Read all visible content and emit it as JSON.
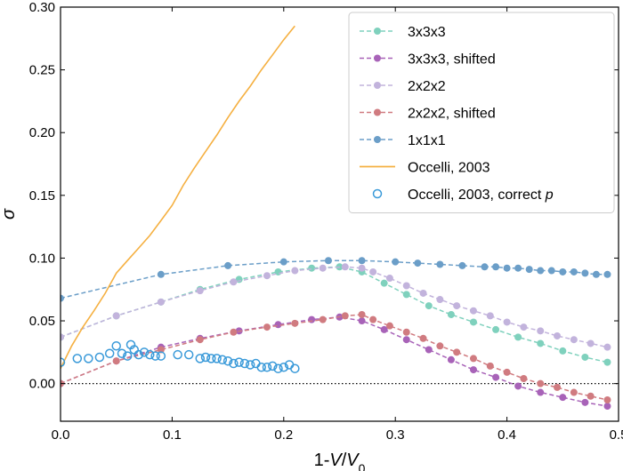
{
  "chart_data": {
    "type": "line",
    "xlabel": {
      "prefix": "1-",
      "var": "V",
      "sep": "/",
      "var2": "V",
      "sub": "0"
    },
    "ylabel": "σ",
    "xlim": [
      0,
      0.5
    ],
    "ylim": [
      -0.03,
      0.3
    ],
    "xticks": [
      "0.0",
      "0.1",
      "0.2",
      "0.3",
      "0.4",
      "0.5"
    ],
    "yticks": [
      "0.00",
      "0.05",
      "0.10",
      "0.15",
      "0.20",
      "0.25",
      "0.30"
    ],
    "reference_line": {
      "y": 0,
      "style": "dotted"
    },
    "legend_position": "top-right",
    "series": [
      {
        "name": "3x3x3",
        "legend_text": "3x3x3",
        "color": "#7fd1bd",
        "style": "dashed-markers",
        "x": [
          0.0,
          0.05,
          0.09,
          0.125,
          0.16,
          0.195,
          0.225,
          0.25,
          0.27,
          0.29,
          0.31,
          0.33,
          0.35,
          0.37,
          0.39,
          0.41,
          0.43,
          0.45,
          0.47,
          0.49
        ],
        "y": [
          0.037,
          0.054,
          0.065,
          0.075,
          0.083,
          0.089,
          0.092,
          0.093,
          0.089,
          0.08,
          0.071,
          0.062,
          0.055,
          0.049,
          0.043,
          0.037,
          0.032,
          0.026,
          0.021,
          0.017
        ]
      },
      {
        "name": "3x3x3, shifted",
        "legend_text": "3x3x3, shifted",
        "color": "#a863b8",
        "style": "dashed-markers",
        "x": [
          0.0,
          0.05,
          0.09,
          0.125,
          0.16,
          0.195,
          0.225,
          0.25,
          0.27,
          0.29,
          0.31,
          0.33,
          0.35,
          0.37,
          0.39,
          0.41,
          0.43,
          0.45,
          0.47,
          0.49
        ],
        "y": [
          0.0,
          0.018,
          0.029,
          0.036,
          0.042,
          0.047,
          0.051,
          0.053,
          0.05,
          0.043,
          0.035,
          0.027,
          0.019,
          0.011,
          0.005,
          -0.002,
          -0.007,
          -0.011,
          -0.015,
          -0.018
        ]
      },
      {
        "name": "2x2x2",
        "legend_text": "2x2x2",
        "color": "#c2b3dc",
        "style": "dashed-markers",
        "x": [
          0.0,
          0.05,
          0.09,
          0.125,
          0.155,
          0.185,
          0.21,
          0.235,
          0.255,
          0.27,
          0.28,
          0.295,
          0.31,
          0.325,
          0.34,
          0.355,
          0.37,
          0.385,
          0.4,
          0.415,
          0.43,
          0.445,
          0.46,
          0.475,
          0.49
        ],
        "y": [
          0.037,
          0.054,
          0.065,
          0.074,
          0.081,
          0.086,
          0.09,
          0.092,
          0.093,
          0.092,
          0.089,
          0.084,
          0.078,
          0.072,
          0.067,
          0.062,
          0.058,
          0.054,
          0.049,
          0.045,
          0.042,
          0.038,
          0.035,
          0.032,
          0.029
        ]
      },
      {
        "name": "2x2x2, shifted",
        "legend_text": "2x2x2, shifted",
        "color": "#d07b80",
        "style": "dashed-markers",
        "x": [
          0.0,
          0.05,
          0.09,
          0.125,
          0.155,
          0.185,
          0.21,
          0.235,
          0.255,
          0.27,
          0.28,
          0.295,
          0.31,
          0.325,
          0.34,
          0.355,
          0.37,
          0.385,
          0.4,
          0.415,
          0.43,
          0.445,
          0.46,
          0.475,
          0.49
        ],
        "y": [
          0.0,
          0.018,
          0.027,
          0.035,
          0.041,
          0.045,
          0.048,
          0.051,
          0.054,
          0.055,
          0.051,
          0.046,
          0.041,
          0.036,
          0.03,
          0.025,
          0.02,
          0.014,
          0.009,
          0.004,
          0.0,
          -0.003,
          -0.007,
          -0.01,
          -0.013
        ]
      },
      {
        "name": "1x1x1",
        "legend_text": "1x1x1",
        "color": "#6b9ec8",
        "style": "dashed-markers",
        "x": [
          0.0,
          0.09,
          0.15,
          0.2,
          0.24,
          0.27,
          0.3,
          0.32,
          0.34,
          0.36,
          0.38,
          0.39,
          0.4,
          0.41,
          0.42,
          0.43,
          0.44,
          0.45,
          0.46,
          0.47,
          0.48,
          0.49
        ],
        "y": [
          0.068,
          0.087,
          0.094,
          0.097,
          0.098,
          0.098,
          0.097,
          0.096,
          0.095,
          0.094,
          0.093,
          0.093,
          0.092,
          0.092,
          0.091,
          0.09,
          0.09,
          0.089,
          0.089,
          0.088,
          0.087,
          0.087
        ]
      },
      {
        "name": "Occelli, 2003",
        "legend_text": "Occelli, 2003",
        "color": "#f5b041",
        "style": "solid-line",
        "x": [
          0.0,
          0.01,
          0.02,
          0.03,
          0.04,
          0.05,
          0.06,
          0.07,
          0.08,
          0.09,
          0.1,
          0.11,
          0.12,
          0.13,
          0.14,
          0.15,
          0.16,
          0.17,
          0.18,
          0.19,
          0.2,
          0.21
        ],
        "y": [
          0.012,
          0.03,
          0.045,
          0.058,
          0.072,
          0.088,
          0.098,
          0.108,
          0.118,
          0.13,
          0.142,
          0.158,
          0.172,
          0.185,
          0.198,
          0.212,
          0.225,
          0.237,
          0.25,
          0.262,
          0.274,
          0.285
        ]
      },
      {
        "name": "Occelli, 2003, correct p",
        "legend_text": "Occelli, 2003, correct ",
        "legend_italic": "p",
        "color": "#3a9ad9",
        "style": "open-markers",
        "x": [
          0.0,
          0.015,
          0.025,
          0.035,
          0.044,
          0.05,
          0.055,
          0.06,
          0.063,
          0.066,
          0.07,
          0.075,
          0.08,
          0.085,
          0.09,
          0.105,
          0.115,
          0.125,
          0.13,
          0.135,
          0.14,
          0.145,
          0.15,
          0.155,
          0.16,
          0.165,
          0.17,
          0.175,
          0.18,
          0.185,
          0.19,
          0.195,
          0.2,
          0.205,
          0.21
        ],
        "y": [
          0.017,
          0.02,
          0.02,
          0.021,
          0.024,
          0.03,
          0.024,
          0.022,
          0.031,
          0.027,
          0.023,
          0.025,
          0.023,
          0.022,
          0.022,
          0.023,
          0.023,
          0.02,
          0.021,
          0.02,
          0.02,
          0.019,
          0.018,
          0.016,
          0.017,
          0.016,
          0.015,
          0.016,
          0.013,
          0.013,
          0.014,
          0.012,
          0.013,
          0.015,
          0.012
        ]
      }
    ]
  }
}
